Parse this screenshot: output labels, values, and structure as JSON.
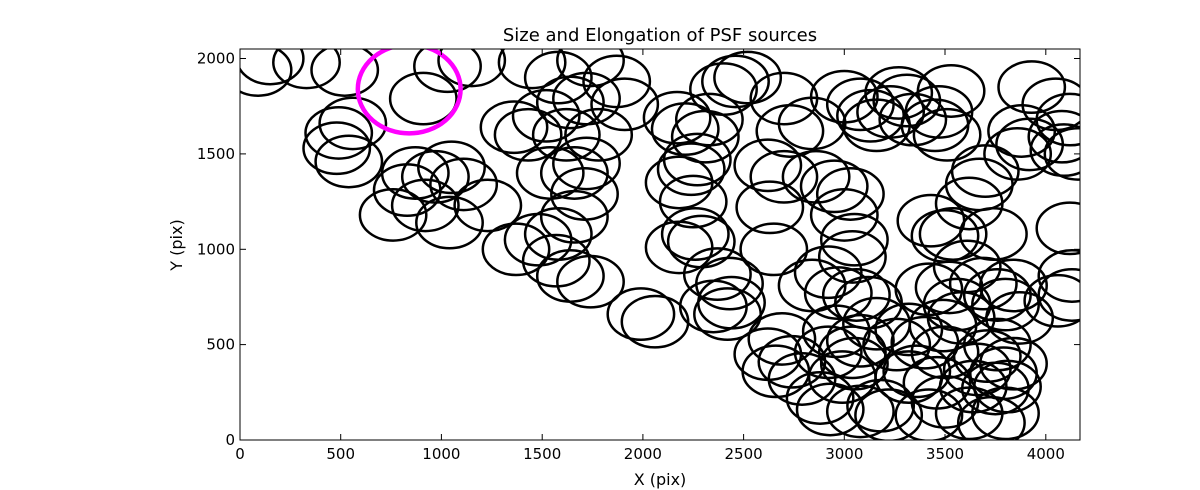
{
  "chart_data": {
    "type": "scatter",
    "title": "Size and Elongation of PSF sources",
    "xlabel": "X (pix)",
    "ylabel": "Y (pix)",
    "xlim": [
      0,
      4170
    ],
    "ylim": [
      0,
      2050
    ],
    "xticks": [
      0,
      500,
      1000,
      1500,
      2000,
      2500,
      3000,
      3500,
      4000
    ],
    "yticks": [
      0,
      500,
      1000,
      1500,
      2000
    ],
    "marker_color": "#000000",
    "highlight_color": "#ff00ff",
    "highlight": {
      "x": 840,
      "y": 1840,
      "width": 510,
      "height": 465
    },
    "sources": [
      [
        90,
        1940
      ],
      [
        150,
        2000
      ],
      [
        520,
        1940
      ],
      [
        330,
        1980
      ],
      [
        490,
        1610
      ],
      [
        560,
        1660
      ],
      [
        480,
        1530
      ],
      [
        540,
        1460
      ],
      [
        910,
        1790
      ],
      [
        1150,
        1990
      ],
      [
        1030,
        1960
      ],
      [
        1450,
        1980
      ],
      [
        1580,
        1900
      ],
      [
        1740,
        1990
      ],
      [
        1870,
        1880
      ],
      [
        1640,
        1770
      ],
      [
        1520,
        1700
      ],
      [
        1360,
        1640
      ],
      [
        1430,
        1600
      ],
      [
        1620,
        1600
      ],
      [
        1780,
        1600
      ],
      [
        1910,
        1760
      ],
      [
        1720,
        1790
      ],
      [
        870,
        1400
      ],
      [
        1050,
        1430
      ],
      [
        970,
        1380
      ],
      [
        830,
        1310
      ],
      [
        1110,
        1340
      ],
      [
        920,
        1230
      ],
      [
        760,
        1180
      ],
      [
        1040,
        1140
      ],
      [
        1230,
        1230
      ],
      [
        1370,
        1000
      ],
      [
        1480,
        1050
      ],
      [
        1580,
        1080
      ],
      [
        1660,
        1170
      ],
      [
        1710,
        1290
      ],
      [
        1540,
        1400
      ],
      [
        1660,
        1400
      ],
      [
        1720,
        1450
      ],
      [
        1570,
        940
      ],
      [
        1640,
        860
      ],
      [
        1740,
        830
      ],
      [
        1990,
        660
      ],
      [
        2060,
        620
      ],
      [
        2170,
        1690
      ],
      [
        2210,
        1630
      ],
      [
        2330,
        1680
      ],
      [
        2310,
        1590
      ],
      [
        2270,
        1470
      ],
      [
        2240,
        1420
      ],
      [
        2180,
        1350
      ],
      [
        2250,
        1250
      ],
      [
        2260,
        1080
      ],
      [
        2290,
        1040
      ],
      [
        2180,
        1010
      ],
      [
        2370,
        870
      ],
      [
        2430,
        820
      ],
      [
        2350,
        700
      ],
      [
        2440,
        720
      ],
      [
        2420,
        660
      ],
      [
        2460,
        1880
      ],
      [
        2520,
        1900
      ],
      [
        2400,
        1840
      ],
      [
        2700,
        1790
      ],
      [
        2840,
        1660
      ],
      [
        2730,
        1620
      ],
      [
        2620,
        1440
      ],
      [
        2700,
        1380
      ],
      [
        2630,
        1220
      ],
      [
        2650,
        1000
      ],
      [
        2690,
        530
      ],
      [
        2620,
        450
      ],
      [
        2740,
        410
      ],
      [
        2660,
        360
      ],
      [
        2790,
        320
      ],
      [
        2860,
        1380
      ],
      [
        2950,
        1330
      ],
      [
        3030,
        1290
      ],
      [
        3000,
        1180
      ],
      [
        3050,
        1050
      ],
      [
        3040,
        960
      ],
      [
        2920,
        880
      ],
      [
        2840,
        810
      ],
      [
        2970,
        770
      ],
      [
        3060,
        760
      ],
      [
        3120,
        720
      ],
      [
        3160,
        610
      ],
      [
        2960,
        570
      ],
      [
        3080,
        520
      ],
      [
        3040,
        460
      ],
      [
        2920,
        460
      ],
      [
        3050,
        400
      ],
      [
        2990,
        330
      ],
      [
        2880,
        220
      ],
      [
        2930,
        160
      ],
      [
        3080,
        150
      ],
      [
        3220,
        130
      ],
      [
        3180,
        180
      ],
      [
        3320,
        330
      ],
      [
        3000,
        1800
      ],
      [
        3080,
        1760
      ],
      [
        3130,
        1700
      ],
      [
        3230,
        1720
      ],
      [
        3270,
        1820
      ],
      [
        3310,
        1780
      ],
      [
        3160,
        1650
      ],
      [
        3340,
        1680
      ],
      [
        3450,
        1650
      ],
      [
        3470,
        1720
      ],
      [
        3530,
        1830
      ],
      [
        3510,
        1600
      ],
      [
        3430,
        1150
      ],
      [
        3500,
        1070
      ],
      [
        3540,
        1080
      ],
      [
        3620,
        1240
      ],
      [
        3670,
        1340
      ],
      [
        3700,
        1410
      ],
      [
        3740,
        1080
      ],
      [
        3610,
        910
      ],
      [
        3520,
        800
      ],
      [
        3420,
        790
      ],
      [
        3560,
        710
      ],
      [
        3580,
        640
      ],
      [
        3490,
        600
      ],
      [
        3320,
        580
      ],
      [
        3260,
        500
      ],
      [
        3400,
        510
      ],
      [
        3500,
        460
      ],
      [
        3360,
        360
      ],
      [
        3460,
        300
      ],
      [
        3500,
        200
      ],
      [
        3420,
        130
      ],
      [
        3620,
        140
      ],
      [
        3730,
        90
      ],
      [
        3640,
        280
      ],
      [
        3750,
        270
      ],
      [
        3810,
        280
      ],
      [
        3790,
        350
      ],
      [
        3840,
        400
      ],
      [
        3710,
        440
      ],
      [
        3760,
        500
      ],
      [
        3660,
        370
      ],
      [
        3690,
        820
      ],
      [
        3760,
        760
      ],
      [
        3800,
        710
      ],
      [
        3870,
        640
      ],
      [
        3840,
        810
      ],
      [
        3930,
        1850
      ],
      [
        3880,
        1620
      ],
      [
        3920,
        1550
      ],
      [
        3860,
        1500
      ],
      [
        4050,
        1760
      ],
      [
        4120,
        1680
      ],
      [
        4080,
        1590
      ],
      [
        4090,
        1520
      ],
      [
        4160,
        1500
      ],
      [
        4120,
        1110
      ],
      [
        4130,
        860
      ],
      [
        4060,
        730
      ],
      [
        4130,
        760
      ],
      [
        3800,
        140
      ]
    ]
  }
}
